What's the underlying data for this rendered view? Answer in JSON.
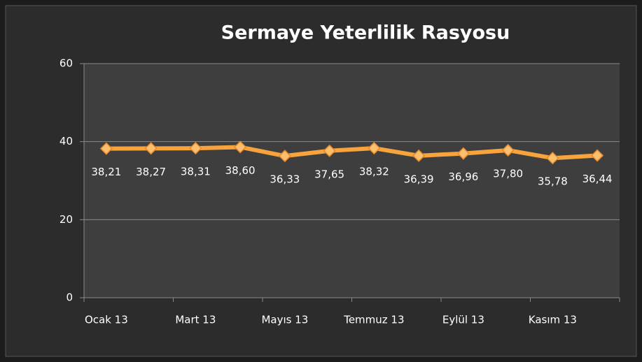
{
  "chart_data": {
    "type": "line",
    "title": "Sermaye Yeterlilik Rasyosu",
    "categories": [
      "Ocak 13",
      null,
      "Mart 13",
      null,
      "Mayıs 13",
      null,
      "Temmuz 13",
      null,
      "Eylül 13",
      null,
      "Kasım 13",
      null
    ],
    "values": [
      38.21,
      38.27,
      38.31,
      38.6,
      36.33,
      37.65,
      38.32,
      36.39,
      36.96,
      37.8,
      35.78,
      36.44
    ],
    "value_labels": [
      "38,21",
      "38,27",
      "38,31",
      "38,60",
      "36,33",
      "37,65",
      "38,32",
      "36,39",
      "36,96",
      "37,80",
      "35,78",
      "36,44"
    ],
    "color": "#f7a43d",
    "ylim": [
      0,
      60
    ],
    "yticks": [
      0,
      20,
      40,
      60
    ],
    "grid": true
  }
}
